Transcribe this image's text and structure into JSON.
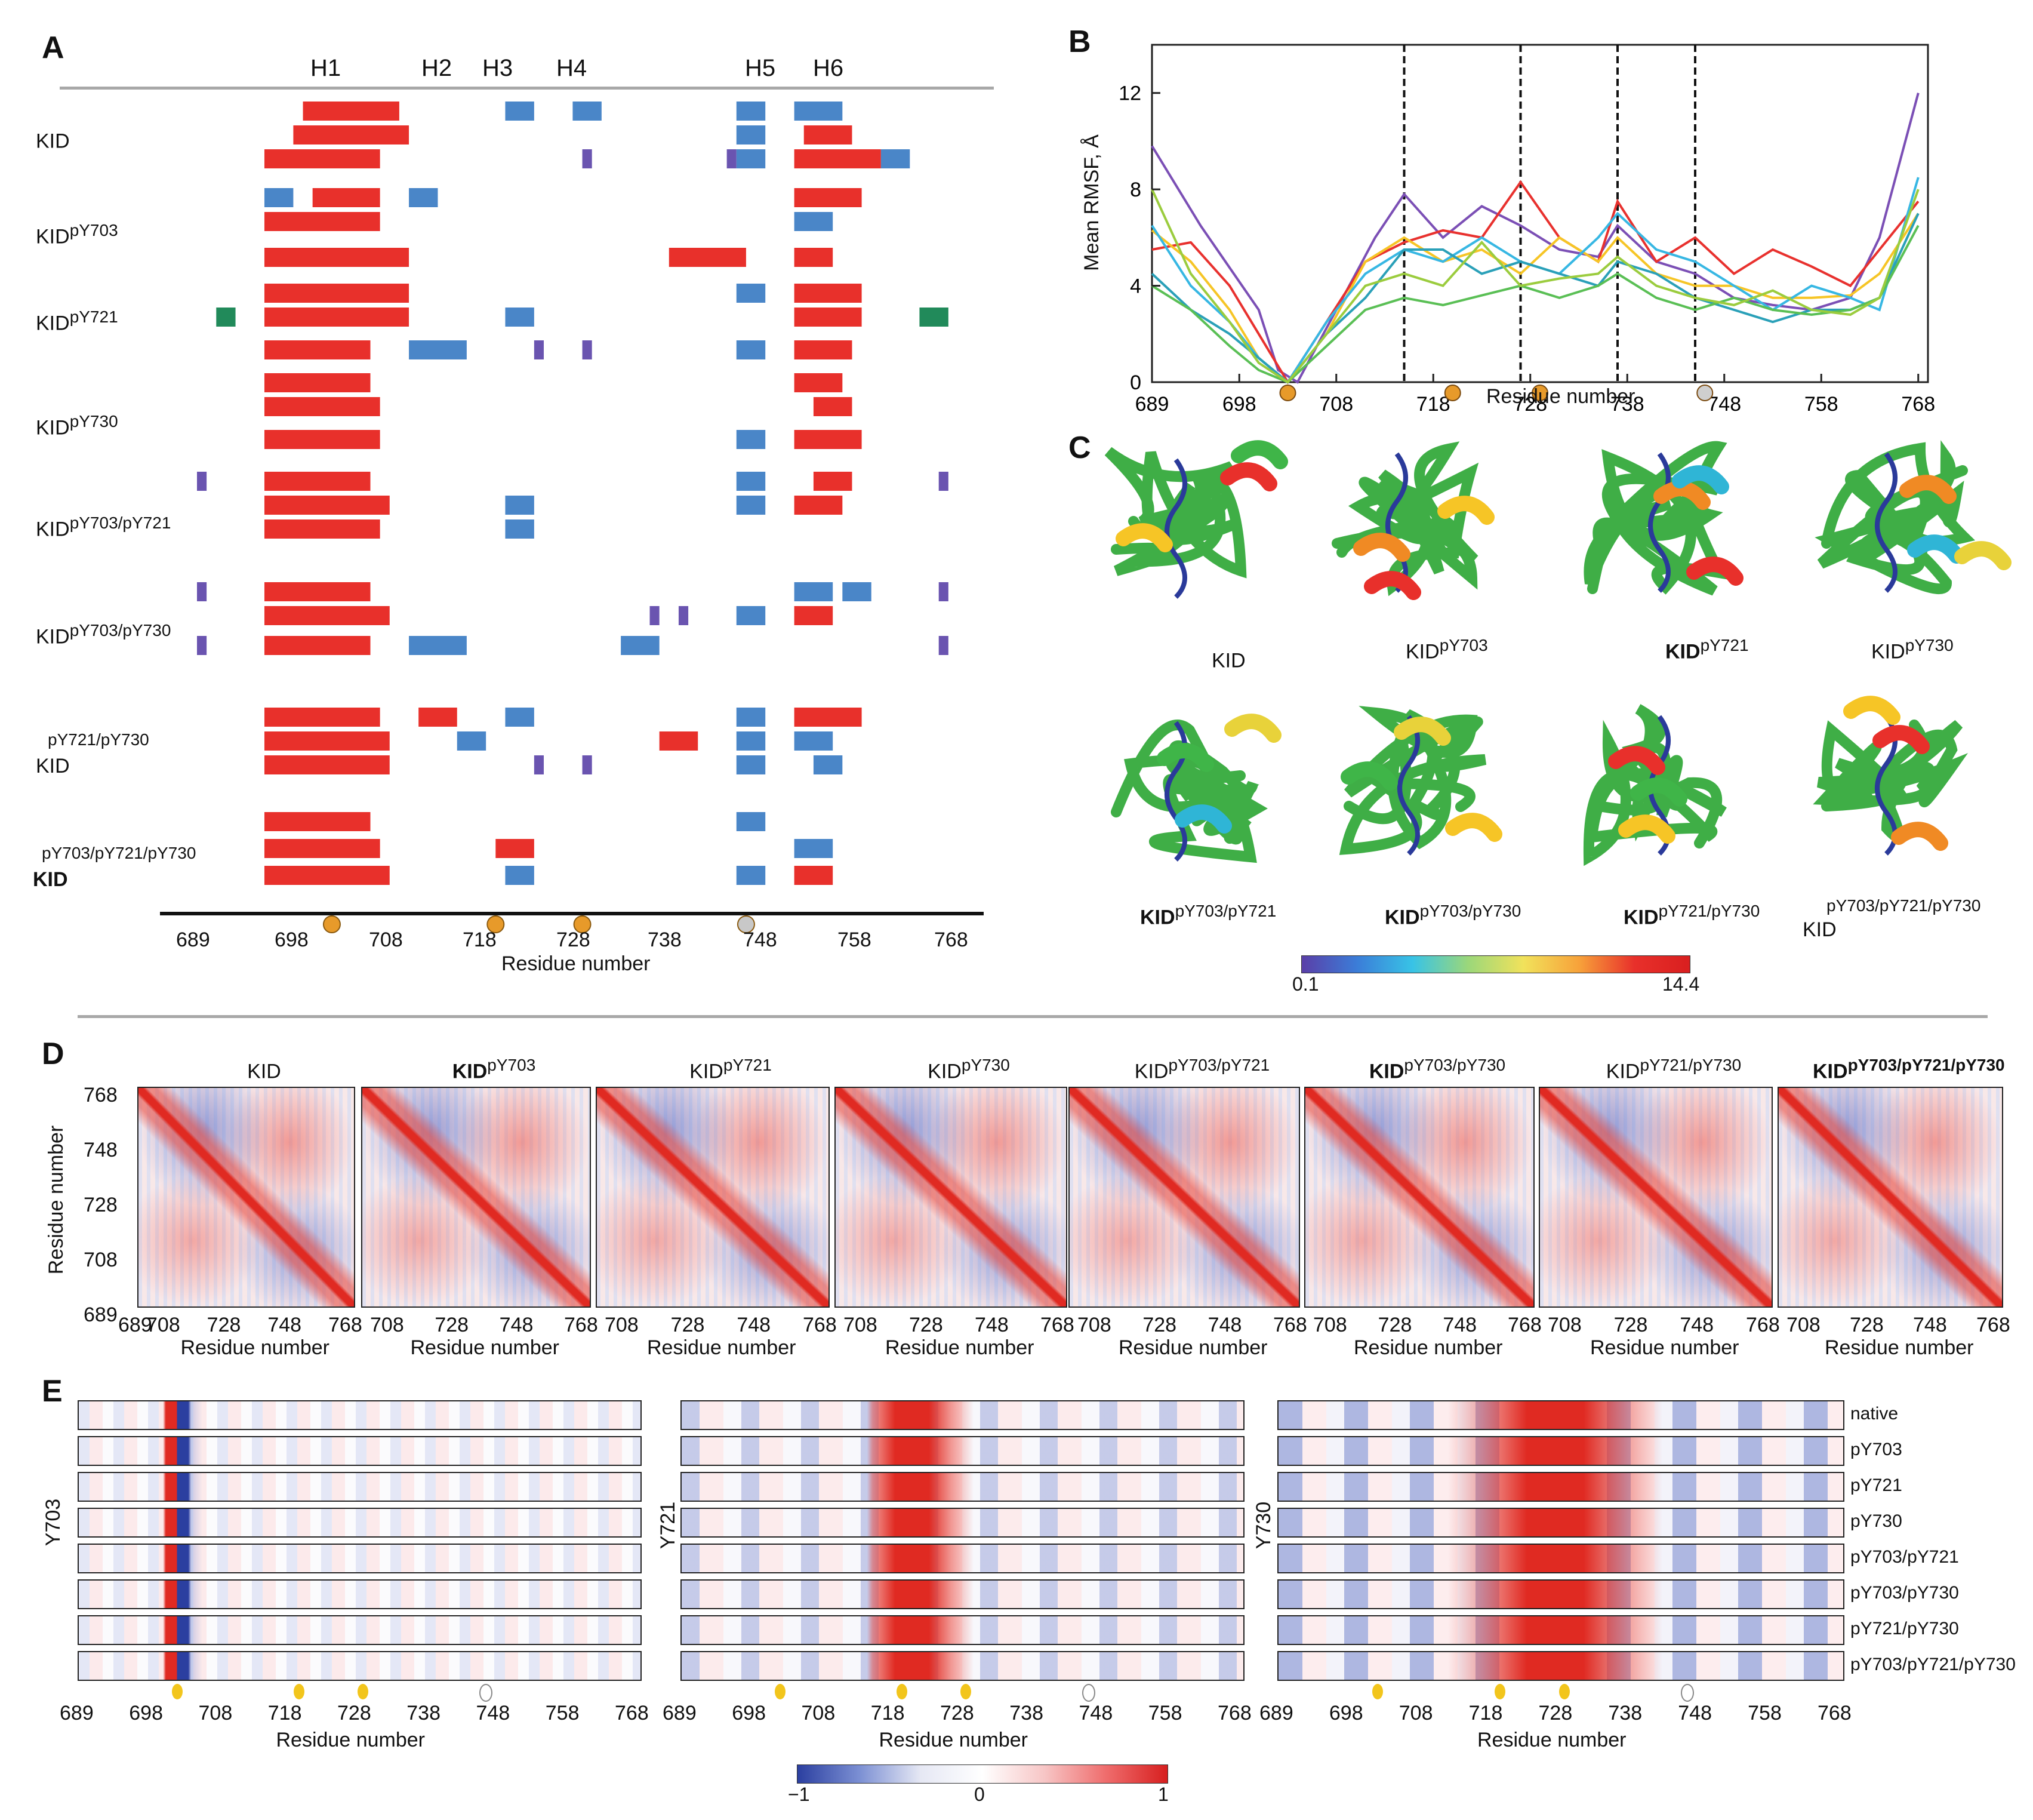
{
  "panel_labels": {
    "a": "A",
    "b": "B",
    "c": "C",
    "d": "D",
    "e": "E"
  },
  "panel_a": {
    "helix_labels": [
      "H1",
      "H2",
      "H3",
      "H4",
      "H5",
      "H6"
    ],
    "group_labels": [
      {
        "base": "KID",
        "sup": ""
      },
      {
        "base": "KID",
        "sup": "pY703"
      },
      {
        "base": "KID",
        "sup": "pY721"
      },
      {
        "base": "KID",
        "sup": "pY730"
      },
      {
        "base": "KID",
        "sup": "pY703/pY721"
      },
      {
        "base": "KID",
        "sup": "pY703/pY730"
      },
      {
        "base": "KID",
        "sup": "pY721/pY730"
      },
      {
        "base": "KID",
        "sup": "pY703/pY721/pY730"
      }
    ],
    "ticks": [
      "689",
      "698",
      "708",
      "718",
      "728",
      "738",
      "748",
      "758",
      "768"
    ],
    "xlabel": "Residue number"
  },
  "panel_b": {
    "chart_data": {
      "type": "line",
      "title": "",
      "xlabel": "Residue number",
      "ylabel": "Mean RMSF, Å",
      "xlim": [
        689,
        769
      ],
      "ylim": [
        0,
        14
      ],
      "x_ticks": [
        689,
        698,
        708,
        718,
        728,
        738,
        748,
        758,
        768
      ],
      "y_ticks": [
        0,
        4,
        8,
        12
      ],
      "dashed_lines_x": [
        715,
        727,
        737,
        745
      ],
      "series": [
        {
          "color": "#7b4fb5",
          "values": [
            [
              689,
              9.8
            ],
            [
              694,
              6.5
            ],
            [
              700,
              3.0
            ],
            [
              702,
              0.5
            ],
            [
              704,
              0.0
            ],
            [
              708,
              3
            ],
            [
              712,
              6
            ],
            [
              715,
              7.8
            ],
            [
              719,
              6
            ],
            [
              723,
              7.3
            ],
            [
              727,
              6.5
            ],
            [
              731,
              5.5
            ],
            [
              735,
              5.2
            ],
            [
              737,
              6.5
            ],
            [
              741,
              5
            ],
            [
              745,
              4.5
            ],
            [
              749,
              3.5
            ],
            [
              753,
              3.2
            ],
            [
              757,
              3.0
            ],
            [
              761,
              3.5
            ],
            [
              764,
              6
            ],
            [
              768,
              12
            ]
          ]
        },
        {
          "color": "#e8312e",
          "values": [
            [
              689,
              5.5
            ],
            [
              693,
              5.8
            ],
            [
              697,
              4
            ],
            [
              700,
              2
            ],
            [
              703,
              0
            ],
            [
              707,
              2.5
            ],
            [
              711,
              5
            ],
            [
              715,
              5.8
            ],
            [
              719,
              6.3
            ],
            [
              723,
              6
            ],
            [
              727,
              8.3
            ],
            [
              731,
              6
            ],
            [
              735,
              5
            ],
            [
              737,
              7.5
            ],
            [
              741,
              5
            ],
            [
              745,
              6
            ],
            [
              749,
              4.5
            ],
            [
              753,
              5.5
            ],
            [
              757,
              4.8
            ],
            [
              761,
              4
            ],
            [
              764,
              5.5
            ],
            [
              768,
              7.5
            ]
          ]
        },
        {
          "color": "#f6c526",
          "values": [
            [
              689,
              6.3
            ],
            [
              693,
              5
            ],
            [
              697,
              3
            ],
            [
              700,
              1
            ],
            [
              703,
              0
            ],
            [
              707,
              2
            ],
            [
              711,
              5
            ],
            [
              715,
              6
            ],
            [
              719,
              5
            ],
            [
              723,
              5.5
            ],
            [
              727,
              4.5
            ],
            [
              731,
              6
            ],
            [
              735,
              5
            ],
            [
              737,
              6
            ],
            [
              741,
              4.5
            ],
            [
              745,
              4
            ],
            [
              749,
              4
            ],
            [
              753,
              3.5
            ],
            [
              757,
              3.5
            ],
            [
              761,
              3.6
            ],
            [
              764,
              4.5
            ],
            [
              768,
              7
            ]
          ]
        },
        {
          "color": "#37b7e3",
          "values": [
            [
              689,
              6.5
            ],
            [
              693,
              4
            ],
            [
              697,
              2.5
            ],
            [
              700,
              1
            ],
            [
              703,
              0
            ],
            [
              707,
              2.5
            ],
            [
              711,
              4.5
            ],
            [
              715,
              5.5
            ],
            [
              719,
              5
            ],
            [
              723,
              6
            ],
            [
              727,
              5
            ],
            [
              731,
              4.5
            ],
            [
              735,
              6
            ],
            [
              737,
              7
            ],
            [
              741,
              5.5
            ],
            [
              745,
              5
            ],
            [
              749,
              4
            ],
            [
              753,
              3
            ],
            [
              757,
              4
            ],
            [
              761,
              3.5
            ],
            [
              764,
              3
            ],
            [
              768,
              8.5
            ]
          ]
        },
        {
          "color": "#2aa0b8",
          "values": [
            [
              689,
              4.5
            ],
            [
              693,
              3
            ],
            [
              697,
              2
            ],
            [
              700,
              1
            ],
            [
              703,
              0
            ],
            [
              707,
              2
            ],
            [
              711,
              3.5
            ],
            [
              715,
              5.5
            ],
            [
              719,
              5.5
            ],
            [
              723,
              4.5
            ],
            [
              727,
              5
            ],
            [
              731,
              4.5
            ],
            [
              735,
              4
            ],
            [
              737,
              5
            ],
            [
              741,
              4.5
            ],
            [
              745,
              3.5
            ],
            [
              749,
              3
            ],
            [
              753,
              2.5
            ],
            [
              757,
              3
            ],
            [
              761,
              3
            ],
            [
              764,
              3.5
            ],
            [
              768,
              7
            ]
          ]
        },
        {
          "color": "#5abf55",
          "values": [
            [
              689,
              4
            ],
            [
              693,
              3
            ],
            [
              697,
              1.5
            ],
            [
              700,
              0.5
            ],
            [
              703,
              0
            ],
            [
              707,
              1.5
            ],
            [
              711,
              3
            ],
            [
              715,
              3.5
            ],
            [
              719,
              3.2
            ],
            [
              723,
              3.6
            ],
            [
              727,
              4
            ],
            [
              731,
              3.5
            ],
            [
              735,
              4
            ],
            [
              737,
              4.5
            ],
            [
              741,
              3.5
            ],
            [
              745,
              3
            ],
            [
              749,
              3.5
            ],
            [
              753,
              3
            ],
            [
              757,
              2.8
            ],
            [
              761,
              3
            ],
            [
              764,
              3.5
            ],
            [
              768,
              6.5
            ]
          ]
        },
        {
          "color": "#9bcc3e",
          "values": [
            [
              689,
              8
            ],
            [
              693,
              4.5
            ],
            [
              697,
              2.5
            ],
            [
              700,
              0.8
            ],
            [
              703,
              0
            ],
            [
              707,
              2
            ],
            [
              711,
              4
            ],
            [
              715,
              4.5
            ],
            [
              719,
              4
            ],
            [
              723,
              5.8
            ],
            [
              727,
              4
            ],
            [
              731,
              4.3
            ],
            [
              735,
              4.5
            ],
            [
              737,
              5.2
            ],
            [
              741,
              4
            ],
            [
              745,
              3.5
            ],
            [
              749,
              3.2
            ],
            [
              753,
              3.8
            ],
            [
              757,
              3
            ],
            [
              761,
              2.8
            ],
            [
              764,
              3.5
            ],
            [
              768,
              8
            ]
          ]
        }
      ]
    }
  },
  "panel_c": {
    "labels": [
      {
        "base": "KID",
        "sup": ""
      },
      {
        "base": "KID",
        "sup": "pY703"
      },
      {
        "base": "KID",
        "sup": "pY721"
      },
      {
        "base": "KID",
        "sup": "pY730"
      },
      {
        "base": "KID",
        "sup": "pY703/pY721"
      },
      {
        "base": "KID",
        "sup": "pY703/pY730"
      },
      {
        "base": "KID",
        "sup": "pY721/pY730"
      },
      {
        "base": "KID",
        "sup": "pY703/pY721/pY730"
      }
    ],
    "colorbar": {
      "min": "0.1",
      "max": "14.4"
    }
  },
  "panel_d": {
    "titles": [
      {
        "base": "KID",
        "sup": ""
      },
      {
        "base": "KID",
        "sup": "pY703"
      },
      {
        "base": "KID",
        "sup": "pY721"
      },
      {
        "base": "KID",
        "sup": "pY730"
      },
      {
        "base": "KID",
        "sup": "pY703/pY721"
      },
      {
        "base": "KID",
        "sup": "pY703/pY730"
      },
      {
        "base": "KID",
        "sup": "pY721/pY730"
      },
      {
        "base": "KID",
        "sup": "pY703/pY721/pY730"
      }
    ],
    "y_ticks": [
      "768",
      "748",
      "728",
      "708",
      "689"
    ],
    "x_ticks": [
      "689",
      "708",
      "728",
      "748",
      "768"
    ],
    "x_ticks_short": [
      "708",
      "728",
      "748",
      "768"
    ],
    "xlabel": "Residue number",
    "ylabel": "Residue number"
  },
  "panel_e": {
    "y_labels": [
      "Y703",
      "Y721",
      "Y730"
    ],
    "row_labels": [
      "native",
      "pY703",
      "pY721",
      "pY730",
      "pY703/pY721",
      "pY703/pY730",
      "pY721/pY730",
      "pY703/pY721/pY730"
    ],
    "ticks": [
      "689",
      "698",
      "708",
      "718",
      "728",
      "738",
      "748",
      "758",
      "768"
    ],
    "xlabel": "Residue number",
    "colorbar": {
      "min": "−1",
      "mid": "0",
      "max": "1"
    }
  }
}
